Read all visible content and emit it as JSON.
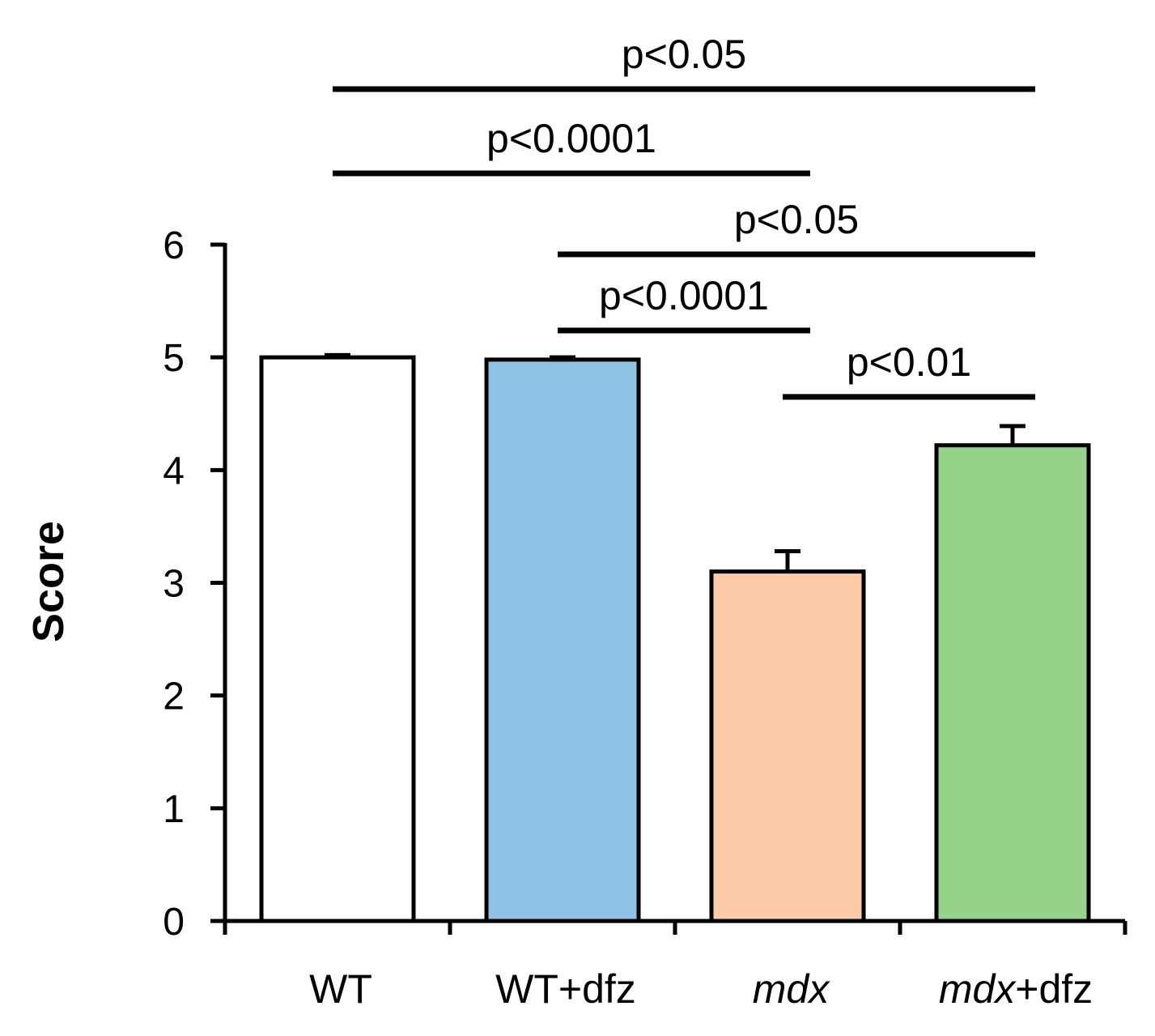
{
  "chart_data": {
    "type": "bar",
    "title": "",
    "xlabel": "",
    "ylabel": "Score",
    "ylim": [
      0,
      6
    ],
    "yticks": [
      {
        "value": 0,
        "label": "0"
      },
      {
        "value": 1,
        "label": "1"
      },
      {
        "value": 2,
        "label": "2"
      },
      {
        "value": 3,
        "label": "3"
      },
      {
        "value": 4,
        "label": "4"
      },
      {
        "value": 5,
        "label": "5"
      },
      {
        "value": 6,
        "label": "6"
      }
    ],
    "categories": [
      {
        "parts": [
          {
            "text": "WT",
            "italic": false
          }
        ]
      },
      {
        "parts": [
          {
            "text": "WT+dfz",
            "italic": false
          }
        ]
      },
      {
        "parts": [
          {
            "text": "mdx",
            "italic": true
          }
        ]
      },
      {
        "parts": [
          {
            "text": "mdx",
            "italic": true
          },
          {
            "text": "+dfz",
            "italic": false
          }
        ]
      }
    ],
    "values": [
      5.0,
      4.98,
      3.1,
      4.22
    ],
    "errors": [
      0.02,
      0.02,
      0.18,
      0.17
    ],
    "colors": [
      "#ffffff",
      "#8ec3e6",
      "#fccaa8",
      "#96d28a"
    ],
    "grid": false,
    "significance": [
      {
        "from": 0,
        "to": 3,
        "label": "p<0.05"
      },
      {
        "from": 0,
        "to": 2,
        "label": "p<0.0001"
      },
      {
        "from": 1,
        "to": 3,
        "label": "p<0.05"
      },
      {
        "from": 1,
        "to": 2,
        "label": "p<0.0001"
      },
      {
        "from": 2,
        "to": 3,
        "label": "p<0.01"
      }
    ]
  }
}
